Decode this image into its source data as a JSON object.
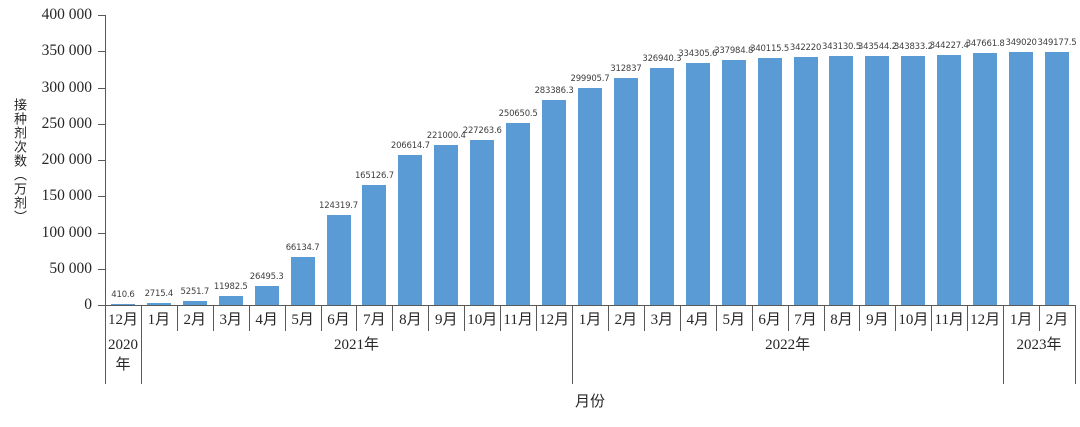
{
  "chart_data": {
    "type": "bar",
    "title": "",
    "xlabel": "月份",
    "ylabel": "接种剂次数（万剂）",
    "ylim": [
      0,
      400000
    ],
    "ytick_interval": 50000,
    "ytick_labels": [
      "0",
      "50 000",
      "100 000",
      "150 000",
      "200 000",
      "250 000",
      "300 000",
      "350 000",
      "400 000"
    ],
    "grid": false,
    "legend": null,
    "bar_color": "#5b9bd5",
    "value_label_color": "#404040",
    "axis_color": "#595959",
    "text_color": "#262626",
    "groups": [
      {
        "year": "2020年",
        "months": [
          "12月"
        ],
        "values": [
          410.6
        ]
      },
      {
        "year": "2021年",
        "months": [
          "1月",
          "2月",
          "3月",
          "4月",
          "5月",
          "6月",
          "7月",
          "8月",
          "9月",
          "10月",
          "11月",
          "12月"
        ],
        "values": [
          2715.4,
          5251.7,
          11982.5,
          26495.3,
          66134.7,
          124319.7,
          165126.7,
          206614.7,
          221000.4,
          227263.6,
          250650.5,
          283386.3
        ]
      },
      {
        "year": "2022年",
        "months": [
          "1月",
          "2月",
          "3月",
          "4月",
          "5月",
          "6月",
          "7月",
          "8月",
          "9月",
          "10月",
          "11月",
          "12月"
        ],
        "values": [
          299905.7,
          312837,
          326940.3,
          334305.6,
          337984.8,
          340115.5,
          342220,
          343130.5,
          343544.2,
          343833.2,
          344227.4,
          347661.8
        ]
      },
      {
        "year": "2023年",
        "months": [
          "1月",
          "2月"
        ],
        "values": [
          349020,
          349177.5
        ]
      }
    ]
  }
}
